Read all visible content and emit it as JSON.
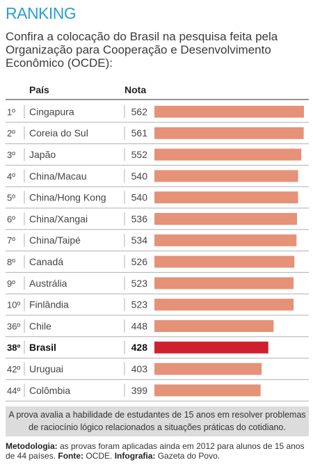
{
  "header": {
    "title": "RANKING",
    "subtitle": "Confira a colocação do Brasil na pesquisa feita pela Organização para Cooperação e Desenvolvimento Econômico (OCDE):",
    "col_country": "País",
    "col_score": "Nota"
  },
  "chart_data": {
    "type": "bar",
    "orientation": "horizontal",
    "title": "RANKING",
    "columns": [
      "País",
      "Nota"
    ],
    "ranks": [
      "1º",
      "2º",
      "3º",
      "4º",
      "5º",
      "6º",
      "7º",
      "8º",
      "9º",
      "10º",
      "36º",
      "38º",
      "42º",
      "44º"
    ],
    "categories": [
      "Cingapura",
      "Coreia do Sul",
      "Japão",
      "China/Macau",
      "China/Hong Kong",
      "China/Xangai",
      "China/Taipé",
      "Canadá",
      "Austrália",
      "Finlândia",
      "Chile",
      "Brasil",
      "Uruguai",
      "Colômbia"
    ],
    "values": [
      562,
      561,
      552,
      540,
      540,
      536,
      534,
      526,
      523,
      523,
      448,
      428,
      403,
      399
    ],
    "highlight": "Brasil",
    "bar_color": "#e59278",
    "highlight_color": "#d0202e",
    "grid": false,
    "legend": "none"
  },
  "footer": {
    "note": "A prova avalia a habilidade de estudantes de 15 anos em resolver problemas de raciocínio lógico relacionados a situações práticas do cotidiano.",
    "method_label": "Metodologia:",
    "method_text": " as provas foram aplicadas ainda em 2012 para alunos de 15 anos de 44 países. ",
    "source_label": "Fonte:",
    "source_text": " OCDE. ",
    "graphic_label": "Infografia:",
    "graphic_text": " Gazeta do Povo."
  }
}
